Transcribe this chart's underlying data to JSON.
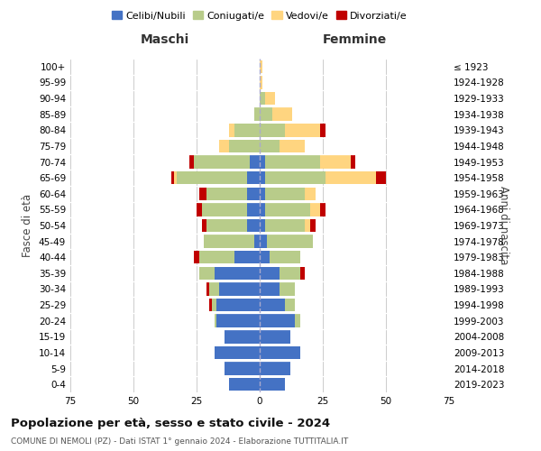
{
  "age_groups": [
    "0-4",
    "5-9",
    "10-14",
    "15-19",
    "20-24",
    "25-29",
    "30-34",
    "35-39",
    "40-44",
    "45-49",
    "50-54",
    "55-59",
    "60-64",
    "65-69",
    "70-74",
    "75-79",
    "80-84",
    "85-89",
    "90-94",
    "95-99",
    "100+"
  ],
  "birth_years": [
    "2019-2023",
    "2014-2018",
    "2009-2013",
    "2004-2008",
    "1999-2003",
    "1994-1998",
    "1989-1993",
    "1984-1988",
    "1979-1983",
    "1974-1978",
    "1969-1973",
    "1964-1968",
    "1959-1963",
    "1954-1958",
    "1949-1953",
    "1944-1948",
    "1939-1943",
    "1934-1938",
    "1929-1933",
    "1924-1928",
    "≤ 1923"
  ],
  "male": {
    "celibi": [
      12,
      14,
      18,
      14,
      17,
      17,
      16,
      18,
      10,
      2,
      5,
      5,
      5,
      5,
      4,
      0,
      0,
      0,
      0,
      0,
      0
    ],
    "coniugati": [
      0,
      0,
      0,
      0,
      1,
      2,
      4,
      6,
      14,
      20,
      16,
      18,
      16,
      28,
      22,
      12,
      10,
      2,
      0,
      0,
      0
    ],
    "vedovi": [
      0,
      0,
      0,
      0,
      0,
      0,
      0,
      0,
      0,
      0,
      0,
      0,
      0,
      1,
      0,
      4,
      2,
      0,
      0,
      0,
      0
    ],
    "divorziati": [
      0,
      0,
      0,
      0,
      0,
      1,
      1,
      0,
      2,
      0,
      2,
      2,
      3,
      1,
      2,
      0,
      0,
      0,
      0,
      0,
      0
    ]
  },
  "female": {
    "nubili": [
      10,
      12,
      16,
      12,
      14,
      10,
      8,
      8,
      4,
      3,
      2,
      2,
      2,
      2,
      2,
      0,
      0,
      0,
      0,
      0,
      0
    ],
    "coniugate": [
      0,
      0,
      0,
      0,
      2,
      4,
      6,
      8,
      12,
      18,
      16,
      18,
      16,
      24,
      22,
      8,
      10,
      5,
      2,
      0,
      0
    ],
    "vedove": [
      0,
      0,
      0,
      0,
      0,
      0,
      0,
      0,
      0,
      0,
      2,
      4,
      4,
      20,
      12,
      10,
      14,
      8,
      4,
      1,
      1
    ],
    "divorziate": [
      0,
      0,
      0,
      0,
      0,
      0,
      0,
      2,
      0,
      0,
      2,
      2,
      0,
      4,
      2,
      0,
      2,
      0,
      0,
      0,
      0
    ]
  },
  "colors": {
    "celibi_nubili": "#4472C4",
    "coniugati_e": "#B8CC8A",
    "vedovi_e": "#FFD580",
    "divorziati_e": "#C00000"
  },
  "title": "Popolazione per età, sesso e stato civile - 2024",
  "subtitle": "COMUNE DI NEMOLI (PZ) - Dati ISTAT 1° gennaio 2024 - Elaborazione TUTTITALIA.IT",
  "ylabel_left": "Fasce di età",
  "ylabel_right": "Anni di nascita",
  "xlabel_left": "Maschi",
  "xlabel_right": "Femmine",
  "xlim": 75,
  "bg_color": "#ffffff",
  "grid_color": "#cccccc"
}
